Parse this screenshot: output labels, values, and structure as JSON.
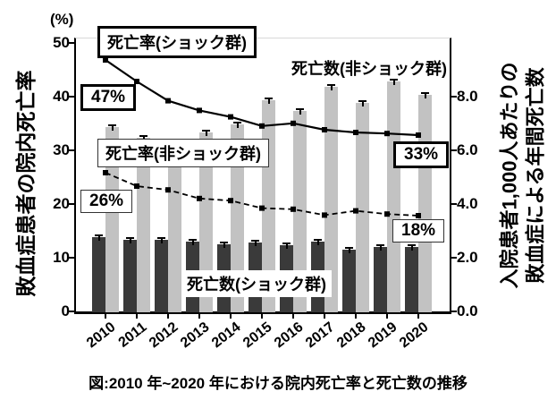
{
  "figure": {
    "caption": "図:2010 年~2020 年における院内死亡率と死亡数の推移",
    "left_axis": {
      "unit": "(%)",
      "title": "敗血症患者の院内死亡率",
      "tick_values": [
        50,
        40,
        30,
        20,
        10,
        0
      ]
    },
    "right_axis": {
      "title_line1": "入院患者1,000人あたりの",
      "title_line2": "敗血症による年間死亡数",
      "tick_labels": [
        "8.0",
        "6.0",
        "4.0",
        "2.0",
        "0.0"
      ],
      "tick_values": [
        8,
        6,
        4,
        2,
        0
      ]
    },
    "annotations": {
      "rate_shock_label": "死亡率(ショック群)",
      "rate_nonshock_label": "死亡率(非ショック群)",
      "deaths_nonshock_label": "死亡数(非ショック群)",
      "deaths_shock_label": "死亡数(ショック群)",
      "rate_shock_start": "47%",
      "rate_shock_end": "33%",
      "rate_nonshock_start": "26%",
      "rate_nonshock_end": "18%"
    },
    "colors": {
      "dark_bar": "#3a3a3a",
      "light_bar": "#c2c2c2",
      "line": "#000000"
    }
  },
  "chart_data": {
    "type": "bar",
    "subtype": "grouped bars with two overlaid lines (dual axis)",
    "categories": [
      "2010",
      "2011",
      "2012",
      "2013",
      "2014",
      "2015",
      "2016",
      "2017",
      "2018",
      "2019",
      "2020"
    ],
    "series": [
      {
        "name": "死亡率(ショック群)",
        "render": "line-solid",
        "axis": "left",
        "unit": "%",
        "values": [
          47,
          43,
          39.4,
          37.6,
          36.4,
          34.7,
          35.2,
          34.0,
          33.5,
          33.3,
          33.0
        ]
      },
      {
        "name": "死亡率(非ショック群)",
        "render": "line-dashed",
        "axis": "left",
        "unit": "%",
        "values": [
          26,
          23.5,
          22.8,
          21.2,
          20.8,
          19.4,
          19.2,
          18.1,
          18.9,
          18.3,
          18.0
        ]
      },
      {
        "name": "死亡数(ショック群)",
        "render": "bar-dark",
        "axis": "right",
        "unit": "deaths per 1,000 inpatients",
        "values": [
          2.8,
          2.7,
          2.7,
          2.65,
          2.55,
          2.6,
          2.5,
          2.65,
          2.35,
          2.45,
          2.45
        ]
      },
      {
        "name": "死亡数(非ショック群)",
        "render": "bar-light",
        "axis": "right",
        "unit": "deaths per 1,000 inpatients",
        "values": [
          6.9,
          6.5,
          6.3,
          6.7,
          7.0,
          7.9,
          7.5,
          8.4,
          7.8,
          8.6,
          8.1
        ]
      }
    ],
    "left_ylim": [
      0,
      51
    ],
    "right_ylim": [
      0,
      10.2
    ],
    "grid": false,
    "legend_position": "inline annotations",
    "title": "図:2010 年~2020 年における院内死亡率と死亡数の推移",
    "xlabel": "",
    "ylabel_left": "敗血症患者の院内死亡率 (%)",
    "ylabel_right": "入院患者1,000人あたりの敗血症による年間死亡数"
  }
}
